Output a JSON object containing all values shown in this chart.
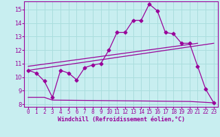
{
  "background_color": "#c8eef0",
  "grid_color": "#aadddd",
  "line_color": "#990099",
  "x_label": "Windchill (Refroidissement éolien,°C)",
  "ylim": [
    7.8,
    15.6
  ],
  "xlim": [
    -0.5,
    23.5
  ],
  "yticks": [
    8,
    9,
    10,
    11,
    12,
    13,
    14,
    15
  ],
  "xticks": [
    0,
    1,
    2,
    3,
    4,
    5,
    6,
    7,
    8,
    9,
    10,
    11,
    12,
    13,
    14,
    15,
    16,
    17,
    18,
    19,
    20,
    21,
    22,
    23
  ],
  "series1_x": [
    0,
    1,
    2,
    3,
    4,
    5,
    6,
    7,
    8,
    9,
    10,
    11,
    12,
    13,
    14,
    15,
    16,
    17,
    18,
    19,
    20,
    21,
    22,
    23
  ],
  "series1_y": [
    10.5,
    10.3,
    9.7,
    8.5,
    10.5,
    10.3,
    9.8,
    10.7,
    10.9,
    11.0,
    12.0,
    13.3,
    13.3,
    14.2,
    14.2,
    15.4,
    14.9,
    13.3,
    13.2,
    12.5,
    12.5,
    10.8,
    9.1,
    8.1
  ],
  "series2_x": [
    0,
    23
  ],
  "series2_y": [
    10.5,
    12.5
  ],
  "series3_x": [
    0,
    21
  ],
  "series3_y": [
    10.8,
    12.5
  ],
  "series4_x": [
    0,
    2,
    3,
    20,
    23
  ],
  "series4_y": [
    8.5,
    8.5,
    8.3,
    8.2,
    8.1
  ]
}
